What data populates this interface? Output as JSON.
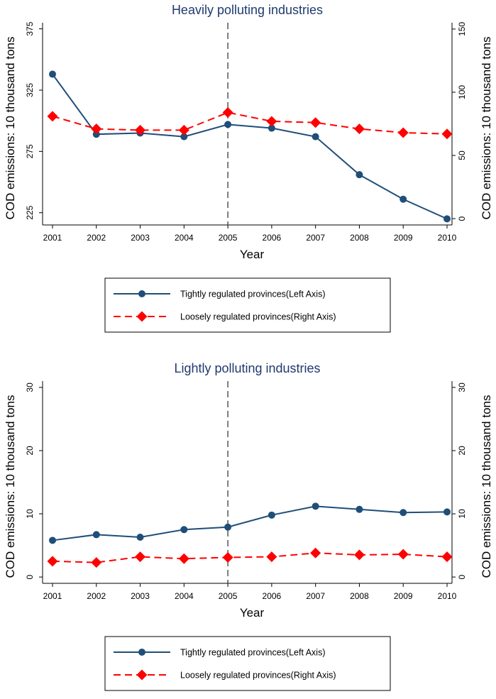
{
  "charts": [
    {
      "type": "line",
      "title": "Heavily polluting industries",
      "xlabel": "Year",
      "ylabel_left": "COD emissions: 10 thousand tons",
      "ylabel_right": "COD emissions: 10 thousand tons",
      "categories": [
        "2001",
        "2002",
        "2003",
        "2004",
        "2005",
        "2006",
        "2007",
        "2008",
        "2009",
        "2010"
      ],
      "ylim_left": [
        215,
        380
      ],
      "ylim_right": [
        -5,
        155
      ],
      "yticks_left": [
        225,
        275,
        325,
        375
      ],
      "yticks_right": [
        0,
        50,
        100,
        150
      ],
      "vline_at": "2005",
      "series": [
        {
          "name": "Tightly regulated provinces(Left Axis)",
          "axis": "left",
          "color": "#1f4e79",
          "marker": "circle",
          "dash": "solid",
          "values": [
            338,
            289,
            290,
            287,
            297,
            294,
            287,
            256,
            236,
            220
          ]
        },
        {
          "name": "Loosely regulated provinces(Right Axis)",
          "axis": "right",
          "color": "#ff0000",
          "marker": "diamond",
          "dash": "dashed",
          "values": [
            81,
            71,
            70,
            70,
            84,
            77,
            76,
            71,
            68,
            67
          ]
        }
      ],
      "legend": "bottom"
    },
    {
      "type": "line",
      "title": "Lightly polluting industries",
      "xlabel": "Year",
      "ylabel_left": "COD emissions: 10 thousand tons",
      "ylabel_right": "COD emissions: 10 thousand tons",
      "categories": [
        "2001",
        "2002",
        "2003",
        "2004",
        "2005",
        "2006",
        "2007",
        "2008",
        "2009",
        "2010"
      ],
      "ylim_left": [
        -1,
        31
      ],
      "ylim_right": [
        -1,
        31
      ],
      "yticks_left": [
        0,
        10,
        20,
        30
      ],
      "yticks_right": [
        0,
        10,
        20,
        30
      ],
      "vline_at": "2005",
      "series": [
        {
          "name": "Tightly regulated provinces(Left Axis)",
          "axis": "left",
          "color": "#1f4e79",
          "marker": "circle",
          "dash": "solid",
          "values": [
            5.8,
            6.7,
            6.3,
            7.5,
            7.9,
            9.8,
            11.2,
            10.7,
            10.2,
            10.3
          ]
        },
        {
          "name": "Loosely regulated provinces(Right Axis)",
          "axis": "right",
          "color": "#ff0000",
          "marker": "diamond",
          "dash": "dashed",
          "values": [
            2.5,
            2.3,
            3.2,
            2.9,
            3.1,
            3.2,
            3.8,
            3.5,
            3.6,
            3.2
          ]
        }
      ],
      "legend": "bottom"
    }
  ]
}
